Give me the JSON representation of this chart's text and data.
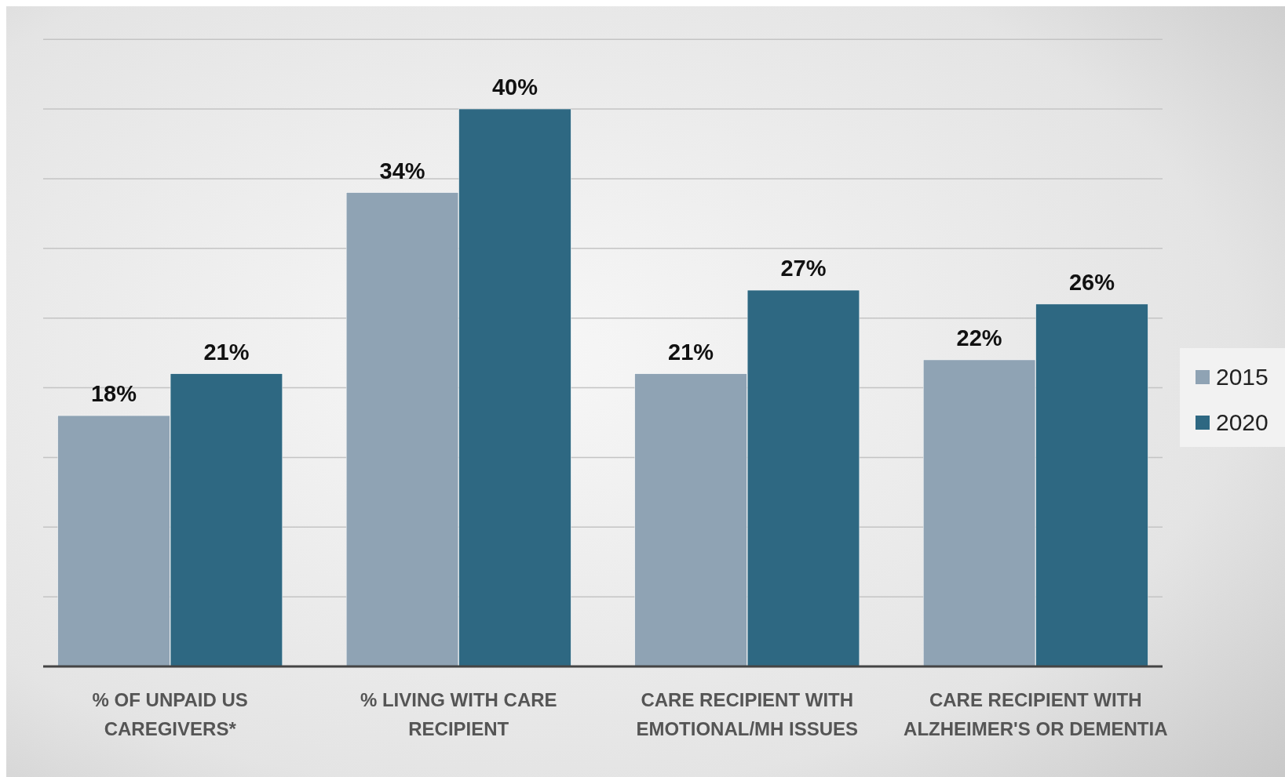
{
  "chart_data": {
    "type": "bar",
    "categories": [
      "% OF UNPAID US CAREGIVERS*",
      "% LIVING WITH CARE RECIPIENT",
      "CARE RECIPIENT WITH EMOTIONAL/MH ISSUES",
      "CARE RECIPIENT WITH ALZHEIMER'S OR DEMENTIA"
    ],
    "series": [
      {
        "name": "2015",
        "color": "#8fa3b4",
        "values": [
          18,
          34,
          21,
          22
        ],
        "value_labels": [
          "18%",
          "34%",
          "21%",
          "22%"
        ]
      },
      {
        "name": "2020",
        "color": "#2e6882",
        "values": [
          21,
          40,
          27,
          26
        ],
        "value_labels": [
          "21%",
          "40%",
          "27%",
          "26%"
        ]
      }
    ],
    "tick_labels": "x",
    "grid": "y",
    "legend": "right"
  }
}
